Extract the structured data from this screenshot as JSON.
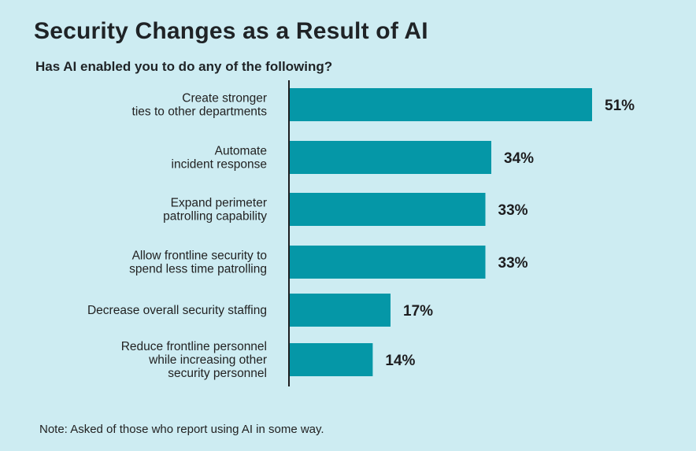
{
  "chart_data": {
    "type": "bar",
    "orientation": "horizontal",
    "title": "Security Changes as a Result of AI",
    "subtitle": "Has AI enabled you to do any of the following?",
    "categories": [
      [
        "Create stronger",
        "ties to other departments"
      ],
      [
        "Automate",
        "incident response"
      ],
      [
        "Expand perimeter",
        "patrolling capability"
      ],
      [
        "Allow frontline security to",
        "spend less time patrolling"
      ],
      [
        "Decrease overall security staffing"
      ],
      [
        "Reduce frontline personnel",
        "while increasing other",
        "security personnel"
      ]
    ],
    "values": [
      51,
      34,
      33,
      33,
      17,
      14
    ],
    "value_labels": [
      "51%",
      "34%",
      "33%",
      "33%",
      "17%",
      "14%"
    ],
    "unit": "%",
    "xlim": [
      0,
      100
    ],
    "grid": false,
    "bar_color": "#0597a7",
    "note": "Note: Asked of those who report using AI in some way."
  },
  "colors": {
    "background": "#cdecf2",
    "bar": "#0597a7",
    "text": "#1f2326"
  }
}
